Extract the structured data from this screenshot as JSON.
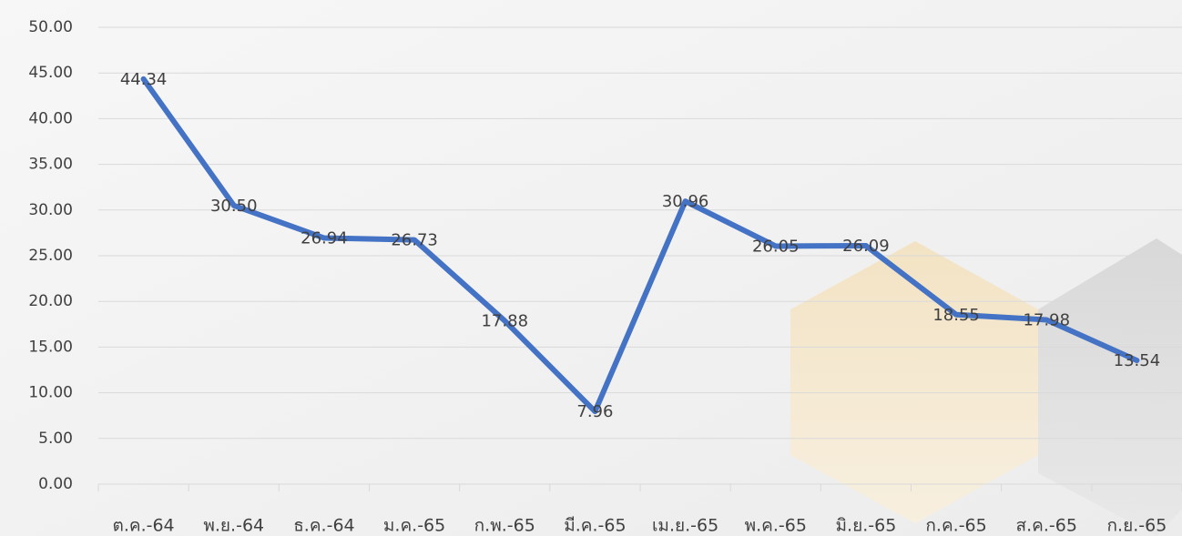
{
  "chart_data": {
    "type": "line",
    "categories": [
      "ต.ค.-64",
      "พ.ย.-64",
      "ธ.ค.-64",
      "ม.ค.-65",
      "ก.พ.-65",
      "มี.ค.-65",
      "เม.ย.-65",
      "พ.ค.-65",
      "มิ.ย.-65",
      "ก.ค.-65",
      "ส.ค.-65",
      "ก.ย.-65"
    ],
    "values": [
      44.34,
      30.5,
      26.94,
      26.73,
      17.88,
      7.96,
      30.96,
      26.05,
      26.09,
      18.55,
      17.98,
      13.54
    ],
    "value_labels": [
      "44.34",
      "30.50",
      "26.94",
      "26.73",
      "17.88",
      "7.96",
      "30.96",
      "26.05",
      "26.09",
      "18.55",
      "17.98",
      "13.54"
    ],
    "color": "#4472c4",
    "ylim": [
      0,
      50
    ],
    "yticks": [
      {
        "value": 0,
        "label": "0.00"
      },
      {
        "value": 5,
        "label": "5.00"
      },
      {
        "value": 10,
        "label": "10.00"
      },
      {
        "value": 15,
        "label": "15.00"
      },
      {
        "value": 20,
        "label": "20.00"
      },
      {
        "value": 25,
        "label": "25.00"
      },
      {
        "value": 30,
        "label": "30.00"
      },
      {
        "value": 35,
        "label": "35.00"
      },
      {
        "value": 40,
        "label": "40.00"
      },
      {
        "value": 45,
        "label": "45.00"
      },
      {
        "value": 50,
        "label": "50.00"
      }
    ],
    "grid": true
  }
}
